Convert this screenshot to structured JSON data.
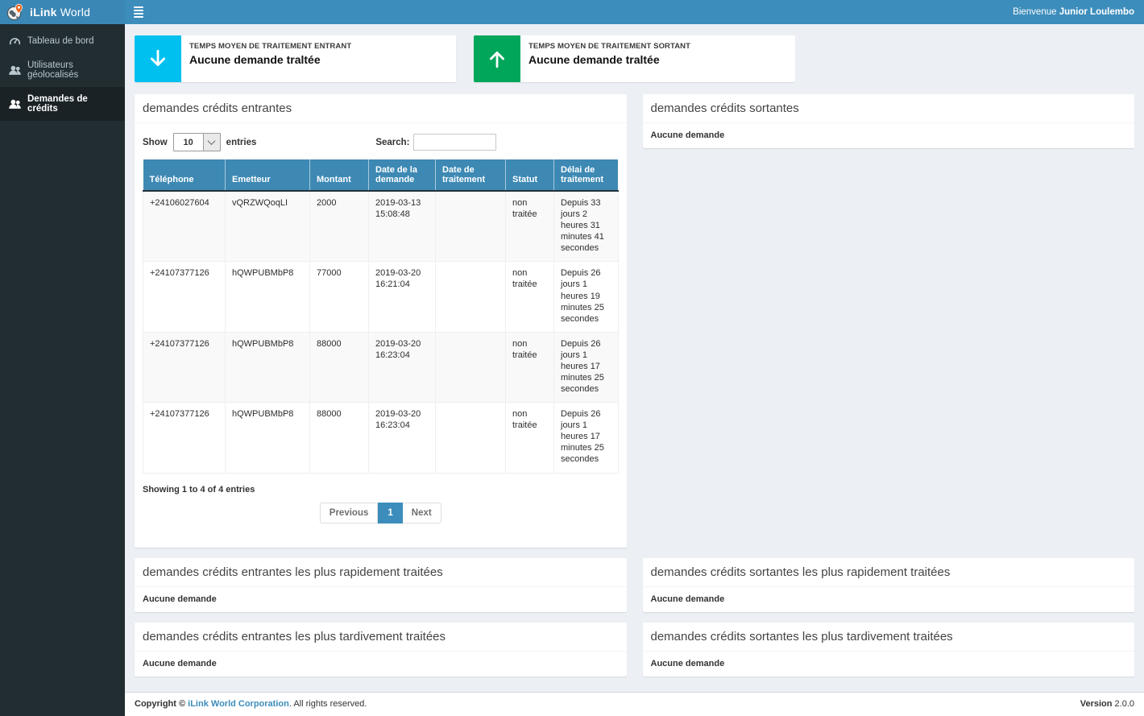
{
  "brand": {
    "bold": "iLink",
    "light": "World"
  },
  "topbar": {
    "welcome_prefix": "Bienvenue",
    "welcome_user": "Junior Loulembo"
  },
  "sidebar": {
    "items": [
      {
        "label": "Tableau de bord",
        "icon": "gauge-icon",
        "active": false
      },
      {
        "label": "Utilisateurs géolocalisés",
        "icon": "users-icon",
        "active": false
      },
      {
        "label": "Demandes de crédits",
        "icon": "users-icon",
        "active": true
      }
    ]
  },
  "stat_cards": [
    {
      "title": "TEMPS MOYEN DE TRAITEMENT ENTRANT",
      "value": "Aucune demande traltée",
      "icon": "arrow-down-icon",
      "color": "#00c0ef"
    },
    {
      "title": "TEMPS MOYEN DE TRAITEMENT SORTANT",
      "value": "Aucune demande traltée",
      "icon": "arrow-up-icon",
      "color": "#00a65a"
    }
  ],
  "entrantes_panel": {
    "title": "demandes crédits entrantes",
    "length_control": {
      "show": "Show",
      "selected": "10",
      "entries": "entries"
    },
    "search": {
      "label": "Search:",
      "value": ""
    },
    "table": {
      "columns": [
        "Téléphone",
        "Emetteur",
        "Montant",
        "Date de la demande",
        "Date de traitement",
        "Statut",
        "Délai de traitement"
      ],
      "rows": [
        [
          "+24106027604",
          "vQRZWQoqLI",
          "2000",
          "2019-03-13 15:08:48",
          "",
          "non traitée",
          "Depuis 33 jours 2 heures 31 minutes 41 secondes"
        ],
        [
          "+24107377126",
          "hQWPUBMbP8",
          "77000",
          "2019-03-20 16:21:04",
          "",
          "non traitée",
          "Depuis 26 jours 1 heures 19 minutes 25 secondes"
        ],
        [
          "+24107377126",
          "hQWPUBMbP8",
          "88000",
          "2019-03-20 16:23:04",
          "",
          "non traitée",
          "Depuis 26 jours 1 heures 17 minutes 25 secondes"
        ],
        [
          "+24107377126",
          "hQWPUBMbP8",
          "88000",
          "2019-03-20 16:23:04",
          "",
          "non traitée",
          "Depuis 26 jours 1 heures 17 minutes 25 secondes"
        ]
      ]
    },
    "info": "Showing 1 to 4 of 4 entries",
    "pagination": {
      "previous": "Previous",
      "current": "1",
      "next": "Next"
    }
  },
  "sortantes_panel": {
    "title": "demandes crédits sortantes",
    "empty": "Aucune demande"
  },
  "bottom_panels": [
    {
      "title": "demandes crédits entrantes les plus rapidement traitées",
      "empty": "Aucune demande"
    },
    {
      "title": "demandes crédits sortantes les plus rapidement traitées",
      "empty": "Aucune demande"
    },
    {
      "title": "demandes crédits entrantes les plus tardivement traitées",
      "empty": "Aucune demande"
    },
    {
      "title": "demandes crédits sortantes les plus tardivement traitées",
      "empty": "Aucune demande"
    }
  ],
  "footer": {
    "copyright_prefix": "Copyright © ",
    "company_link": "iLink World Corporation",
    "copyright_suffix": ". All rights reserved.",
    "version_label": "Version",
    "version_value": "2.0.0"
  },
  "colors": {
    "navbar_blue": "#3c8dbc",
    "table_header_blue": "#3d89b4",
    "sidebar_dark": "#222d32",
    "stat_cyan": "#00c0ef",
    "stat_green": "#00a65a",
    "page_bg": "#ecf0f5"
  }
}
